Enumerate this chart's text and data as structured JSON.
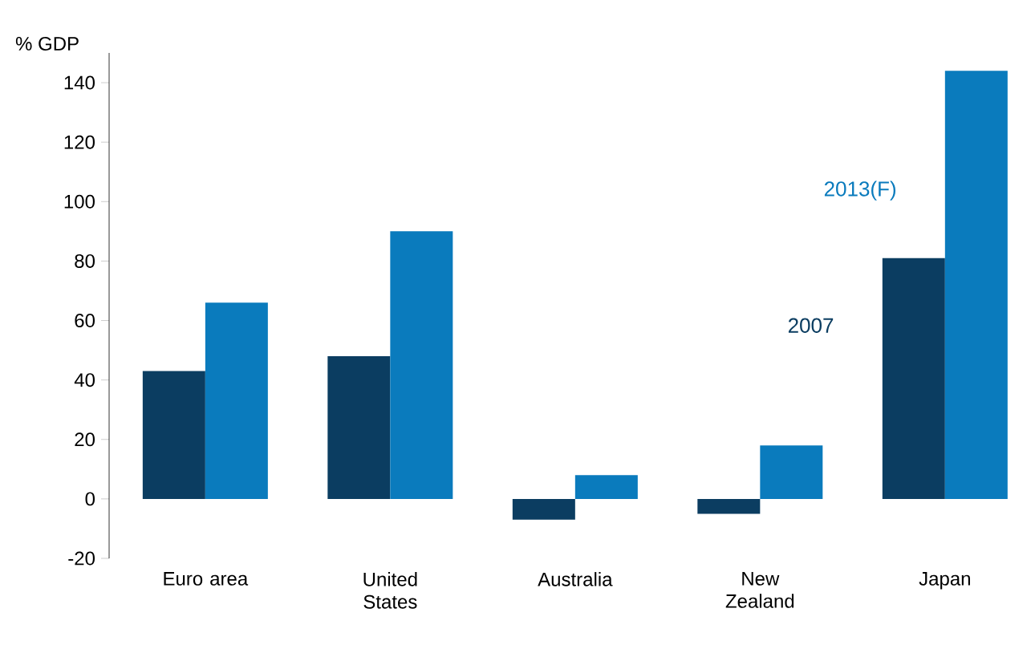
{
  "chart_data": {
    "type": "bar",
    "ylabel": "% GDP",
    "categories": [
      "Euro area",
      "United States",
      "Australia",
      "New Zealand",
      "Japan"
    ],
    "series": [
      {
        "name": "2007",
        "color": "#0b3d61",
        "values": [
          43,
          48,
          -7,
          -5,
          81
        ]
      },
      {
        "name": "2013(F)",
        "color": "#0a7bbd",
        "values": [
          66,
          90,
          8,
          18,
          144
        ]
      }
    ],
    "ylim": [
      -20,
      150
    ],
    "yticks": [
      -20,
      0,
      20,
      40,
      60,
      80,
      100,
      120,
      140
    ],
    "grid": false,
    "legend": false
  }
}
